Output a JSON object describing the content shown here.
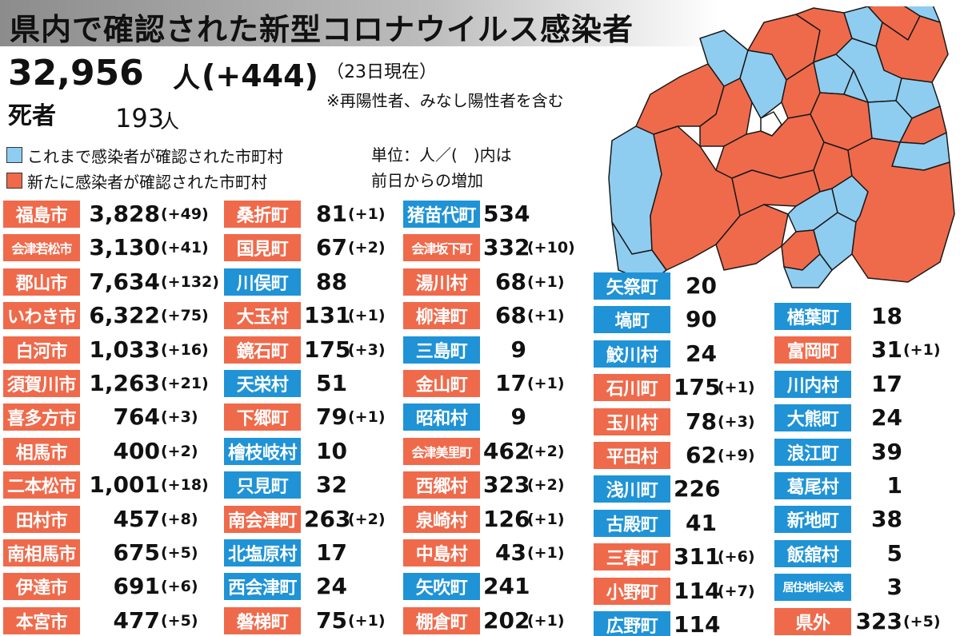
{
  "title": "県内で確認された新型コロナウイルス感染者",
  "summary": {
    "total": "32,956",
    "total_unit": "人",
    "total_delta": "(+444)",
    "as_of": "（23日現在）",
    "note": "※再陽性者、みなし陽性者を含む",
    "deaths_label": "死者",
    "deaths": "193",
    "deaths_unit": "人"
  },
  "legend": {
    "blue_label": "これまで感染者が確認された市町村",
    "red_label": "新たに感染者が確認された市町村",
    "unit_line1": "単位：人／(　)内は",
    "unit_line2": "前日からの増加",
    "colors": {
      "red": "#ef6a4b",
      "blue": "#1f93d6",
      "no_cases": "#ffffff",
      "border": "#1a1a1a"
    }
  },
  "columns": [
    [
      {
        "name": "福島市",
        "value": "3,828",
        "delta": "(+49)",
        "color": "red"
      },
      {
        "name": "会津若松市",
        "value": "3,130",
        "delta": "(+41)",
        "color": "red"
      },
      {
        "name": "郡山市",
        "value": "7,634",
        "delta": "(+132)",
        "color": "red"
      },
      {
        "name": "いわき市",
        "value": "6,322",
        "delta": "(+75)",
        "color": "red"
      },
      {
        "name": "白河市",
        "value": "1,033",
        "delta": "(+16)",
        "color": "red"
      },
      {
        "name": "須賀川市",
        "value": "1,263",
        "delta": "(+21)",
        "color": "red"
      },
      {
        "name": "喜多方市",
        "value": "764",
        "delta": "(+3)",
        "color": "red"
      },
      {
        "name": "相馬市",
        "value": "400",
        "delta": "(+2)",
        "color": "red"
      },
      {
        "name": "二本松市",
        "value": "1,001",
        "delta": "(+18)",
        "color": "red"
      },
      {
        "name": "田村市",
        "value": "457",
        "delta": "(+8)",
        "color": "red"
      },
      {
        "name": "南相馬市",
        "value": "675",
        "delta": "(+5)",
        "color": "red"
      },
      {
        "name": "伊達市",
        "value": "691",
        "delta": "(+6)",
        "color": "red"
      },
      {
        "name": "本宮市",
        "value": "477",
        "delta": "(+5)",
        "color": "red"
      }
    ],
    [
      {
        "name": "桑折町",
        "value": "81",
        "delta": "(+1)",
        "color": "red"
      },
      {
        "name": "国見町",
        "value": "67",
        "delta": "(+2)",
        "color": "red"
      },
      {
        "name": "川俣町",
        "value": "88",
        "delta": "",
        "color": "blue"
      },
      {
        "name": "大玉村",
        "value": "131",
        "delta": "(+1)",
        "color": "red"
      },
      {
        "name": "鏡石町",
        "value": "175",
        "delta": "(+3)",
        "color": "red"
      },
      {
        "name": "天栄村",
        "value": "51",
        "delta": "",
        "color": "blue"
      },
      {
        "name": "下郷町",
        "value": "79",
        "delta": "(+1)",
        "color": "red"
      },
      {
        "name": "檜枝岐村",
        "value": "10",
        "delta": "",
        "color": "blue"
      },
      {
        "name": "只見町",
        "value": "32",
        "delta": "",
        "color": "blue"
      },
      {
        "name": "南会津町",
        "value": "263",
        "delta": "(+2)",
        "color": "red"
      },
      {
        "name": "北塩原村",
        "value": "17",
        "delta": "",
        "color": "blue"
      },
      {
        "name": "西会津町",
        "value": "24",
        "delta": "",
        "color": "blue"
      },
      {
        "name": "磐梯町",
        "value": "75",
        "delta": "(+1)",
        "color": "red"
      }
    ],
    [
      {
        "name": "猪苗代町",
        "value": "534",
        "delta": "",
        "color": "blue"
      },
      {
        "name": "会津坂下町",
        "value": "332",
        "delta": "(+10)",
        "color": "red"
      },
      {
        "name": "湯川村",
        "value": "68",
        "delta": "(+1)",
        "color": "red"
      },
      {
        "name": "柳津町",
        "value": "68",
        "delta": "(+1)",
        "color": "red"
      },
      {
        "name": "三島町",
        "value": "9",
        "delta": "",
        "color": "blue"
      },
      {
        "name": "金山町",
        "value": "17",
        "delta": "(+1)",
        "color": "red"
      },
      {
        "name": "昭和村",
        "value": "9",
        "delta": "",
        "color": "blue"
      },
      {
        "name": "会津美里町",
        "value": "462",
        "delta": "(+2)",
        "color": "red"
      },
      {
        "name": "西郷村",
        "value": "323",
        "delta": "(+2)",
        "color": "red"
      },
      {
        "name": "泉崎村",
        "value": "126",
        "delta": "(+1)",
        "color": "red"
      },
      {
        "name": "中島村",
        "value": "43",
        "delta": "(+1)",
        "color": "red"
      },
      {
        "name": "矢吹町",
        "value": "241",
        "delta": "",
        "color": "blue"
      },
      {
        "name": "棚倉町",
        "value": "202",
        "delta": "(+1)",
        "color": "red"
      }
    ],
    [
      {
        "name": "矢祭町",
        "value": "20",
        "delta": "",
        "color": "blue"
      },
      {
        "name": "塙町",
        "value": "90",
        "delta": "",
        "color": "blue"
      },
      {
        "name": "鮫川村",
        "value": "24",
        "delta": "",
        "color": "blue"
      },
      {
        "name": "石川町",
        "value": "175",
        "delta": "(+1)",
        "color": "red"
      },
      {
        "name": "玉川村",
        "value": "78",
        "delta": "(+3)",
        "color": "red"
      },
      {
        "name": "平田村",
        "value": "62",
        "delta": "(+9)",
        "color": "red"
      },
      {
        "name": "浅川町",
        "value": "226",
        "delta": "",
        "color": "blue"
      },
      {
        "name": "古殿町",
        "value": "41",
        "delta": "",
        "color": "blue"
      },
      {
        "name": "三春町",
        "value": "311",
        "delta": "(+6)",
        "color": "red"
      },
      {
        "name": "小野町",
        "value": "114",
        "delta": "(+7)",
        "color": "red"
      },
      {
        "name": "広野町",
        "value": "114",
        "delta": "",
        "color": "blue"
      }
    ],
    [
      {
        "name": "楢葉町",
        "value": "18",
        "delta": "",
        "color": "blue"
      },
      {
        "name": "富岡町",
        "value": "31",
        "delta": "(+1)",
        "color": "red"
      },
      {
        "name": "川内村",
        "value": "17",
        "delta": "",
        "color": "blue"
      },
      {
        "name": "大熊町",
        "value": "24",
        "delta": "",
        "color": "blue"
      },
      {
        "name": "浪江町",
        "value": "39",
        "delta": "",
        "color": "blue"
      },
      {
        "name": "葛尾村",
        "value": "1",
        "delta": "",
        "color": "blue"
      },
      {
        "name": "新地町",
        "value": "38",
        "delta": "",
        "color": "blue"
      },
      {
        "name": "飯舘村",
        "value": "5",
        "delta": "",
        "color": "blue"
      },
      {
        "name": "居住地非公表",
        "value": "3",
        "delta": "",
        "color": "blue"
      },
      {
        "name": "県外",
        "value": "323",
        "delta": "(+5)",
        "color": "red"
      }
    ]
  ]
}
